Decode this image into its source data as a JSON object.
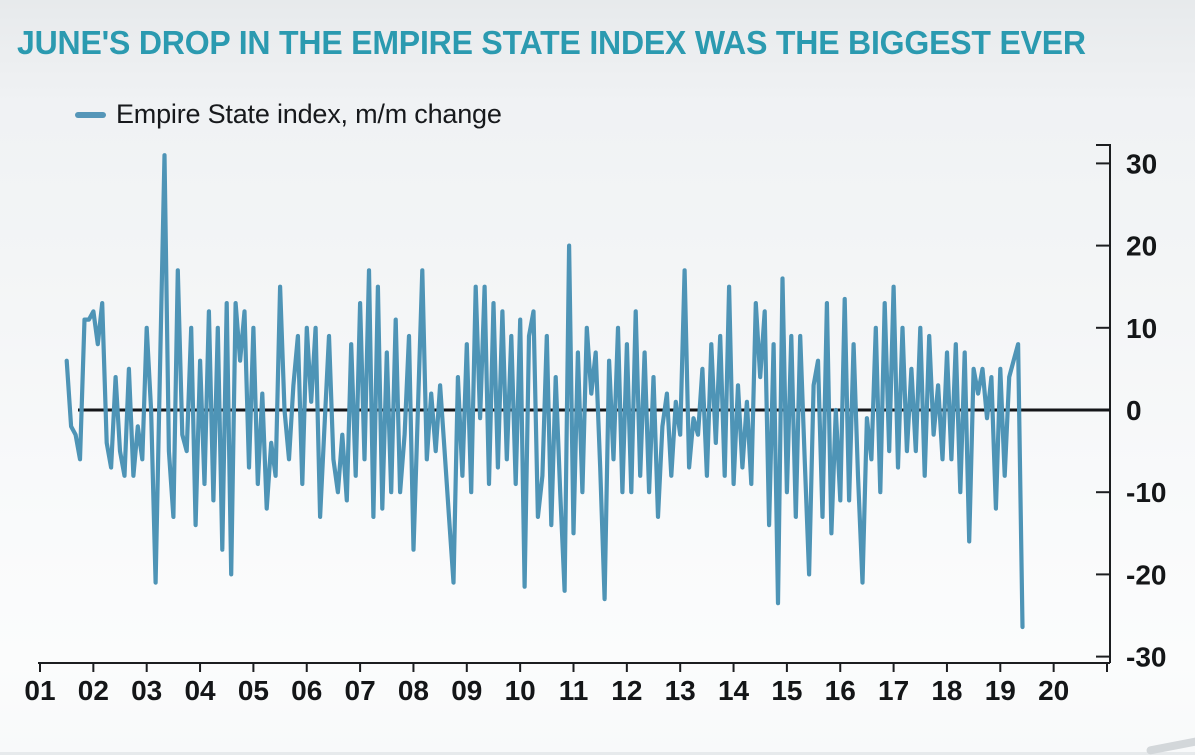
{
  "title": {
    "text": "JUNE'S DROP IN THE EMPIRE STATE INDEX WAS THE BIGGEST EVER",
    "color": "#2b9ab0"
  },
  "legend": {
    "label": "Empire State index, m/m change",
    "marker_color": "#5596b8"
  },
  "chart_data": {
    "type": "line",
    "title": "JUNE'S DROP IN THE EMPIRE STATE INDEX WAS THE BIGGEST EVER",
    "series_name": "Empire State index, m/m change",
    "line_color": "#4e94b6",
    "zero_line": true,
    "grid": false,
    "y_axis_side": "right",
    "ylim": [
      -30,
      32
    ],
    "y_ticks": [
      30,
      20,
      10,
      0,
      -10,
      -20,
      -30
    ],
    "y_tick_labels": [
      "30",
      "20",
      "10",
      "0",
      "-10",
      "-20",
      "-30"
    ],
    "x_tick_labels": [
      "01",
      "02",
      "03",
      "04",
      "05",
      "06",
      "07",
      "08",
      "09",
      "10",
      "11",
      "12",
      "13",
      "14",
      "15",
      "16",
      "17",
      "18",
      "19",
      "20"
    ],
    "x_start": {
      "year": 2001,
      "month": 7
    },
    "frequency": "monthly",
    "last_point": {
      "label": "Jun 2019",
      "value": -26.4
    },
    "max_point": {
      "label": "May 2003",
      "value": 31
    },
    "values": [
      6,
      -2,
      -3,
      -6,
      11,
      11,
      12,
      8,
      13,
      -4,
      -7,
      4,
      -5,
      -8,
      5,
      -8,
      -2,
      -6,
      10,
      0,
      -21,
      5,
      31,
      -5,
      -13,
      17,
      -3,
      -5,
      10,
      -14,
      6,
      -9,
      12,
      -11,
      10,
      -17,
      13,
      -20,
      13,
      6,
      12,
      -7,
      10,
      -9,
      2,
      -12,
      -4,
      -8,
      15,
      0,
      -6,
      3,
      9,
      -9,
      10,
      1,
      10,
      -13,
      -2,
      9,
      -6,
      -10,
      -3,
      -11,
      8,
      -8,
      13,
      -6,
      17,
      -13,
      15,
      -12,
      7,
      -10,
      11,
      -10,
      -3,
      9,
      -17,
      0,
      17,
      -6,
      2,
      -5,
      3,
      -5,
      -13,
      -21,
      4,
      -8,
      8,
      -10,
      15,
      -1,
      15,
      -9,
      13,
      -7,
      12,
      -6,
      9,
      -9,
      11,
      -21.5,
      9,
      12,
      -13,
      -8,
      9,
      -14,
      4,
      -10,
      -22,
      20,
      -15,
      7,
      -10,
      10,
      2,
      7,
      -7,
      -23,
      6,
      -6,
      10,
      -10,
      8,
      -10,
      12,
      -8,
      7,
      -10,
      4,
      -13,
      -2,
      2,
      -8,
      1,
      -3,
      17,
      -7,
      -1,
      -3,
      5,
      -8,
      8,
      -4,
      9,
      -8,
      15,
      -9,
      3,
      -7,
      1,
      -9,
      13,
      4,
      12,
      -14,
      8,
      -23.5,
      16,
      -10,
      9,
      -13,
      9,
      -6,
      -20,
      3,
      6,
      -13,
      13,
      -15,
      0,
      -11,
      13.5,
      -11,
      8,
      -8,
      -21,
      -1,
      -6,
      10,
      -10,
      13,
      -5,
      15,
      -7,
      10,
      -5,
      5,
      -5,
      10,
      -8,
      9,
      -3,
      3,
      -6,
      7,
      -6,
      8,
      -10,
      7,
      -16,
      5,
      2,
      5,
      -1,
      4,
      -12,
      5,
      -8,
      4,
      6,
      8,
      -26.4
    ]
  }
}
